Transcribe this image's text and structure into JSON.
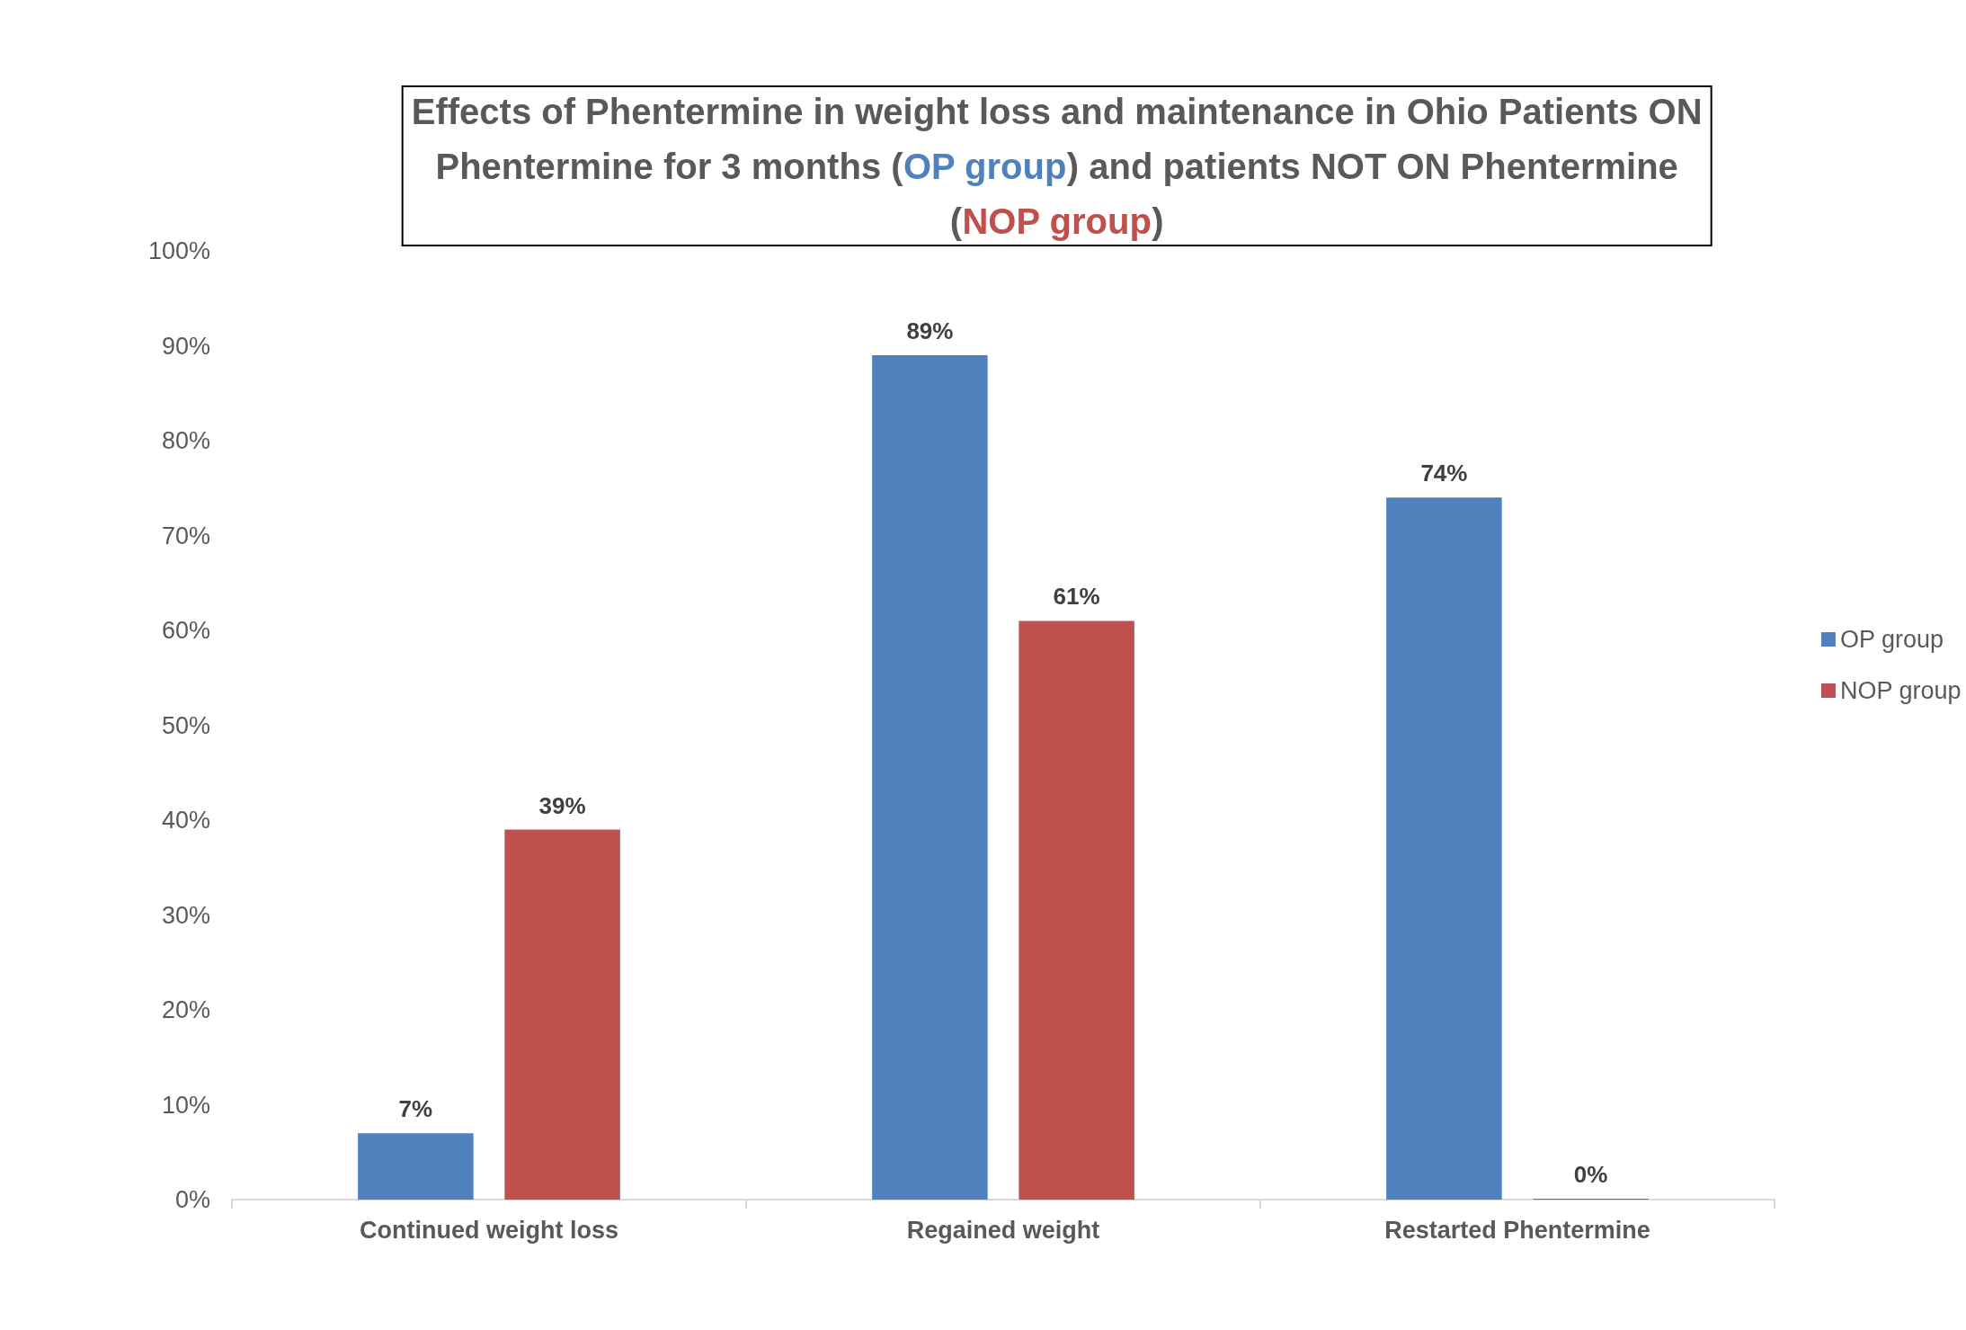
{
  "chart_data": {
    "type": "bar",
    "title": "Effects of Phentermine in weight loss and maintenance in Ohio Patients ON Phentermine for 3 months (OP group) and patients NOT ON Phentermine (NOP group)",
    "categories": [
      "Continued weight loss",
      "Regained weight",
      "Restarted Phentermine"
    ],
    "series": [
      {
        "name": "OP group",
        "color": "#4f81bd",
        "values": [
          7,
          89,
          74
        ],
        "value_labels": [
          "7%",
          "89%",
          "74%"
        ]
      },
      {
        "name": "NOP group",
        "color": "#c0504d",
        "values": [
          39,
          61,
          0
        ],
        "value_labels": [
          "39%",
          "61%",
          "0%"
        ]
      }
    ],
    "ylim": [
      0,
      100
    ],
    "yticks": [
      {
        "value": 0,
        "label": "0%"
      },
      {
        "value": 10,
        "label": "10%"
      },
      {
        "value": 20,
        "label": "20%"
      },
      {
        "value": 30,
        "label": "30%"
      },
      {
        "value": 40,
        "label": "40%"
      },
      {
        "value": 50,
        "label": "50%"
      },
      {
        "value": 60,
        "label": "60%"
      },
      {
        "value": 70,
        "label": "70%"
      },
      {
        "value": 80,
        "label": "80%"
      },
      {
        "value": 90,
        "label": "90%"
      },
      {
        "value": 100,
        "label": "100%"
      }
    ],
    "grid": false,
    "legend": "right"
  }
}
